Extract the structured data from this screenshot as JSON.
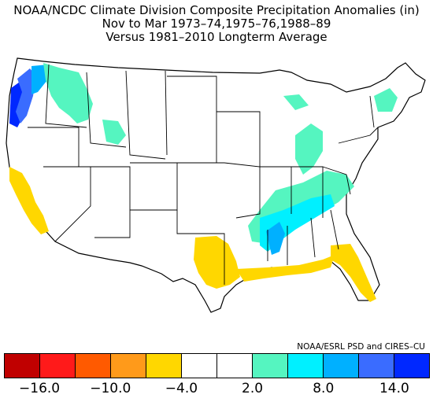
{
  "title": {
    "line1": "NOAA/NCDC Climate Division Composite Precipitation Anomalies (in)",
    "line2": "Nov to Mar  1973–74,1975–76,1988–89",
    "line3": "Versus 1981–2010 Longterm Average"
  },
  "credit": "NOAA/ESRL PSD and CIRES–CU",
  "colorbar": {
    "colors": [
      "#c00000",
      "#ff1a1a",
      "#ff5a00",
      "#ff9a1a",
      "#ffd700",
      "#ffffff",
      "#ffffff",
      "#55f5c0",
      "#00f0ff",
      "#00b0ff",
      "#3a6cff",
      "#0028ff"
    ],
    "tick_labels": [
      "−16.0",
      "−10.0",
      "−4.0",
      "2.0",
      "8.0",
      "14.0"
    ]
  },
  "map": {
    "states_visible": true,
    "climate_divisions_visible": true,
    "wet_regions": [
      "Pacific Northwest coast",
      "Washington interior",
      "Idaho panhandle",
      "Ohio Valley",
      "Tennessee Valley",
      "Lower Mississippi Valley",
      "Michigan",
      "New England"
    ],
    "dry_regions": [
      "California",
      "East Texas",
      "Gulf Coast",
      "Florida"
    ]
  }
}
